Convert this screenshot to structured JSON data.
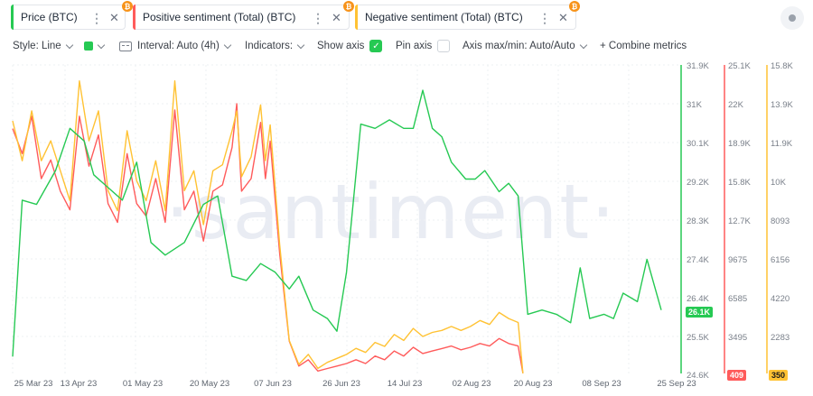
{
  "tabs": [
    {
      "label": "Price (BTC)",
      "accent": "#26c953",
      "badge": "₿"
    },
    {
      "label": "Positive sentiment (Total) (BTC)",
      "accent": "#ff5b5b",
      "badge": "₿"
    },
    {
      "label": "Negative sentiment (Total) (BTC)",
      "accent": "#ffc233",
      "badge": "₿"
    }
  ],
  "toolbar": {
    "style": "Style: Line",
    "interval": "Interval: Auto (4h)",
    "indicators": "Indicators:",
    "show_axis": "Show axis",
    "pin_axis": "Pin axis",
    "axis_maxmin": "Axis max/min: Auto/Auto",
    "combine": "+ Combine metrics"
  },
  "watermark": "·santiment·",
  "colors": {
    "price": "#26c953",
    "positive": "#ff5b5b",
    "negative": "#ffc233"
  },
  "chart_data": {
    "type": "line",
    "x_ticks": [
      "25 Mar 23",
      "13 Apr 23",
      "01 May 23",
      "20 May 23",
      "07 Jun 23",
      "26 Jun 23",
      "14 Jul 23",
      "02 Aug 23",
      "20 Aug 23",
      "08 Sep 23",
      "25 Sep 23"
    ],
    "axes": {
      "price": {
        "ticks": [
          "31.9K",
          "31K",
          "30.1K",
          "29.2K",
          "28.3K",
          "27.4K",
          "26.4K",
          "25.5K",
          "24.6K"
        ],
        "current": "26.1K",
        "ylim": [
          24600,
          31900
        ]
      },
      "positive": {
        "ticks": [
          "25.1K",
          "22K",
          "18.9K",
          "15.8K",
          "12.7K",
          "9675",
          "6585",
          "3495"
        ],
        "current": "409",
        "ylim": [
          405,
          25100
        ]
      },
      "negative": {
        "ticks": [
          "15.8K",
          "13.9K",
          "11.9K",
          "10K",
          "8093",
          "6156",
          "4220",
          "2283"
        ],
        "current": "350",
        "ylim": [
          346,
          15800
        ]
      }
    },
    "series": [
      {
        "name": "Price (BTC)",
        "axis": "price",
        "points": [
          [
            0,
            25000
          ],
          [
            2,
            28700
          ],
          [
            5,
            28600
          ],
          [
            9,
            29400
          ],
          [
            12,
            30400
          ],
          [
            15,
            30100
          ],
          [
            17,
            29300
          ],
          [
            20,
            29000
          ],
          [
            23,
            28700
          ],
          [
            26,
            29600
          ],
          [
            29,
            27700
          ],
          [
            32,
            27400
          ],
          [
            36,
            27700
          ],
          [
            40,
            28600
          ],
          [
            43,
            28800
          ],
          [
            46,
            26900
          ],
          [
            49,
            26800
          ],
          [
            52,
            27200
          ],
          [
            55,
            27000
          ],
          [
            58,
            26600
          ],
          [
            60,
            26900
          ],
          [
            63,
            26100
          ],
          [
            66,
            25900
          ],
          [
            68,
            25600
          ],
          [
            70,
            27000
          ],
          [
            73,
            30500
          ],
          [
            76,
            30400
          ],
          [
            79,
            30600
          ],
          [
            82,
            30400
          ],
          [
            84,
            30400
          ],
          [
            86,
            31300
          ],
          [
            88,
            30400
          ],
          [
            90,
            30200
          ],
          [
            92,
            29600
          ],
          [
            95,
            29200
          ],
          [
            97,
            29200
          ],
          [
            99,
            29400
          ],
          [
            102,
            28900
          ],
          [
            104,
            29100
          ],
          [
            106,
            28800
          ],
          [
            108,
            26000
          ],
          [
            111,
            26100
          ],
          [
            114,
            26000
          ],
          [
            117,
            25800
          ],
          [
            119,
            27100
          ],
          [
            121,
            25900
          ],
          [
            124,
            26000
          ],
          [
            126,
            25900
          ],
          [
            128,
            26500
          ],
          [
            131,
            26300
          ],
          [
            133,
            27300
          ],
          [
            136,
            26100
          ]
        ]
      },
      {
        "name": "Positive sentiment (Total) (BTC)",
        "axis": "positive",
        "points": [
          [
            0,
            20000
          ],
          [
            2,
            18000
          ],
          [
            4,
            21000
          ],
          [
            6,
            16000
          ],
          [
            8,
            17500
          ],
          [
            10,
            15000
          ],
          [
            12,
            13500
          ],
          [
            14,
            21000
          ],
          [
            16,
            17000
          ],
          [
            18,
            19500
          ],
          [
            20,
            14000
          ],
          [
            22,
            12500
          ],
          [
            24,
            18000
          ],
          [
            26,
            14000
          ],
          [
            28,
            13000
          ],
          [
            30,
            16000
          ],
          [
            32,
            12500
          ],
          [
            34,
            21500
          ],
          [
            36,
            13500
          ],
          [
            38,
            15000
          ],
          [
            40,
            11000
          ],
          [
            42,
            15000
          ],
          [
            44,
            15500
          ],
          [
            46,
            18500
          ],
          [
            47,
            22000
          ],
          [
            48,
            15000
          ],
          [
            50,
            16000
          ],
          [
            52,
            20500
          ],
          [
            53,
            16000
          ],
          [
            54,
            19000
          ],
          [
            56,
            10000
          ],
          [
            58,
            3000
          ],
          [
            60,
            1000
          ],
          [
            62,
            1500
          ],
          [
            64,
            600
          ],
          [
            66,
            800
          ],
          [
            68,
            1000
          ],
          [
            70,
            1200
          ],
          [
            72,
            1500
          ],
          [
            74,
            1200
          ],
          [
            76,
            1800
          ],
          [
            78,
            1500
          ],
          [
            80,
            2200
          ],
          [
            82,
            1800
          ],
          [
            84,
            2500
          ],
          [
            86,
            2000
          ],
          [
            88,
            2200
          ],
          [
            90,
            2400
          ],
          [
            92,
            2600
          ],
          [
            94,
            2300
          ],
          [
            96,
            2500
          ],
          [
            98,
            2800
          ],
          [
            100,
            2600
          ],
          [
            102,
            3200
          ],
          [
            104,
            2800
          ],
          [
            106,
            2600
          ],
          [
            107,
            409
          ]
        ]
      },
      {
        "name": "Negative sentiment (Total) (BTC)",
        "axis": "negative",
        "points": [
          [
            0,
            13000
          ],
          [
            2,
            11000
          ],
          [
            4,
            13500
          ],
          [
            6,
            11000
          ],
          [
            8,
            12000
          ],
          [
            10,
            10500
          ],
          [
            12,
            9000
          ],
          [
            14,
            15000
          ],
          [
            16,
            12000
          ],
          [
            18,
            13500
          ],
          [
            20,
            9500
          ],
          [
            22,
            8500
          ],
          [
            24,
            12500
          ],
          [
            26,
            10000
          ],
          [
            28,
            9000
          ],
          [
            30,
            11000
          ],
          [
            32,
            8500
          ],
          [
            34,
            15000
          ],
          [
            36,
            9500
          ],
          [
            38,
            10500
          ],
          [
            40,
            7800
          ],
          [
            42,
            10500
          ],
          [
            44,
            10800
          ],
          [
            46,
            12500
          ],
          [
            47,
            13500
          ],
          [
            48,
            10200
          ],
          [
            50,
            11200
          ],
          [
            52,
            13800
          ],
          [
            53,
            11000
          ],
          [
            54,
            12800
          ],
          [
            56,
            6800
          ],
          [
            58,
            2000
          ],
          [
            60,
            800
          ],
          [
            62,
            1300
          ],
          [
            64,
            600
          ],
          [
            66,
            900
          ],
          [
            68,
            1100
          ],
          [
            70,
            1300
          ],
          [
            72,
            1600
          ],
          [
            74,
            1400
          ],
          [
            76,
            1900
          ],
          [
            78,
            1700
          ],
          [
            80,
            2300
          ],
          [
            82,
            2000
          ],
          [
            84,
            2600
          ],
          [
            86,
            2200
          ],
          [
            88,
            2400
          ],
          [
            90,
            2500
          ],
          [
            92,
            2700
          ],
          [
            94,
            2500
          ],
          [
            96,
            2700
          ],
          [
            98,
            3000
          ],
          [
            100,
            2800
          ],
          [
            102,
            3400
          ],
          [
            104,
            3100
          ],
          [
            106,
            2900
          ],
          [
            107,
            350
          ]
        ]
      }
    ],
    "x_domain": [
      0,
      136
    ]
  }
}
